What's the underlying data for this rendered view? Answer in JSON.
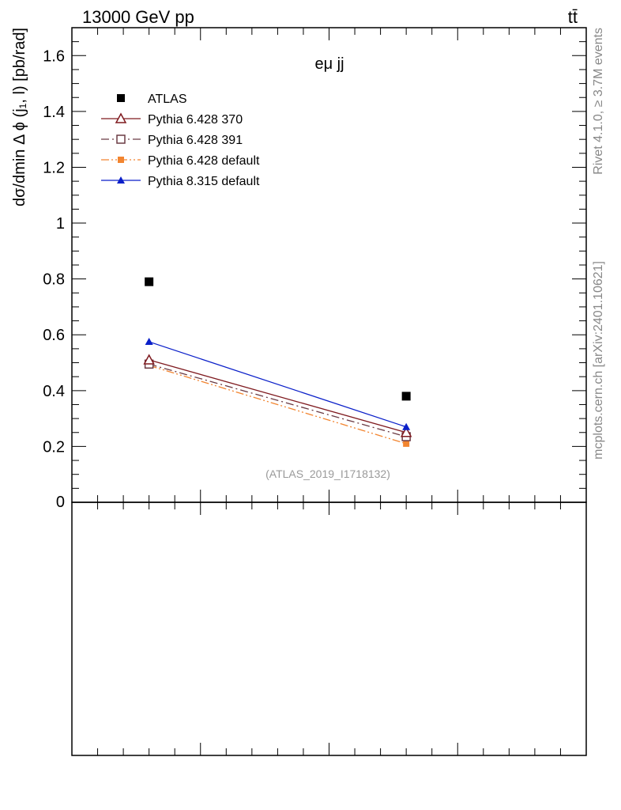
{
  "header": {
    "left_title": "13000 GeV pp",
    "right_title": "tt̄"
  },
  "side_labels": {
    "rivet": "Rivet 4.1.0, ≥ 3.7M events",
    "mcplots": "mcplots.cern.ch [arXiv:2401.10621]"
  },
  "chart_data": {
    "type": "scatter",
    "title": "eμ jj",
    "analysis_label": "(ATLAS_2019_I1718132)",
    "xlabel": "",
    "ylabel": "dσ/dmin Δ ϕ (j₁, l) [pb/rad]",
    "ylim": [
      0,
      1.7
    ],
    "y_ticks": [
      0.2,
      0.4,
      0.6,
      0.8,
      1,
      1.2,
      1.4,
      1.6
    ],
    "y_tick_labels": [
      "0.2",
      "0.4",
      "0.6",
      "0.8",
      "1",
      "1.2",
      "1.4",
      "1.6"
    ],
    "y_bottom_label": "0",
    "x": [
      1,
      2
    ],
    "xlim": [
      0.7,
      2.7
    ],
    "legend_position": "top-left",
    "series": [
      {
        "name": "ATLAS",
        "values": [
          0.79,
          0.38
        ],
        "color": "#000000",
        "marker": "filled-square",
        "line": "none"
      },
      {
        "name": "Pythia 6.428 370",
        "values": [
          0.51,
          0.25
        ],
        "color": "#7f1a1f",
        "marker": "open-triangle",
        "line": "solid"
      },
      {
        "name": "Pythia 6.428 391",
        "values": [
          0.495,
          0.235
        ],
        "color": "#6b3b44",
        "marker": "open-square",
        "line": "dashdot"
      },
      {
        "name": "Pythia 6.428 default",
        "values": [
          0.49,
          0.21
        ],
        "color": "#f28530",
        "marker": "filled-square",
        "line": "dashdotdot"
      },
      {
        "name": "Pythia 8.315 default",
        "values": [
          0.575,
          0.27
        ],
        "color": "#0a1fc9",
        "marker": "filled-triangle",
        "line": "solid"
      }
    ]
  }
}
